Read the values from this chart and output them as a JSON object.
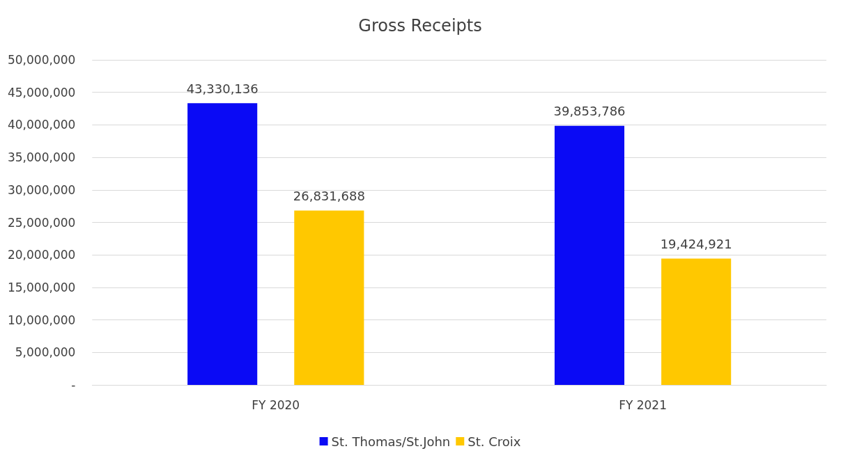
{
  "chart_data": {
    "type": "bar",
    "title": "Gross Receipts",
    "categories": [
      "FY 2020",
      "FY 2021"
    ],
    "series": [
      {
        "name": "St. Thomas/St.John",
        "color": "#0a0af5",
        "values": [
          43330136,
          39853786
        ],
        "value_labels": [
          "43,330,136",
          "39,853,786"
        ]
      },
      {
        "name": "St. Croix",
        "color": "#ffc800",
        "values": [
          26831688,
          19424921
        ],
        "value_labels": [
          "26,831,688",
          "19,424,921"
        ]
      }
    ],
    "ylim": [
      0,
      50000000
    ],
    "yticks": [
      {
        "value": 0,
        "label": "-"
      },
      {
        "value": 5000000,
        "label": "5,000,000"
      },
      {
        "value": 10000000,
        "label": "10,000,000"
      },
      {
        "value": 15000000,
        "label": "15,000,000"
      },
      {
        "value": 20000000,
        "label": "20,000,000"
      },
      {
        "value": 25000000,
        "label": "25,000,000"
      },
      {
        "value": 30000000,
        "label": "30,000,000"
      },
      {
        "value": 35000000,
        "label": "35,000,000"
      },
      {
        "value": 40000000,
        "label": "40,000,000"
      },
      {
        "value": 45000000,
        "label": "45,000,000"
      },
      {
        "value": 50000000,
        "label": "50,000,000"
      }
    ],
    "grid": "y",
    "legend": "bottom"
  }
}
